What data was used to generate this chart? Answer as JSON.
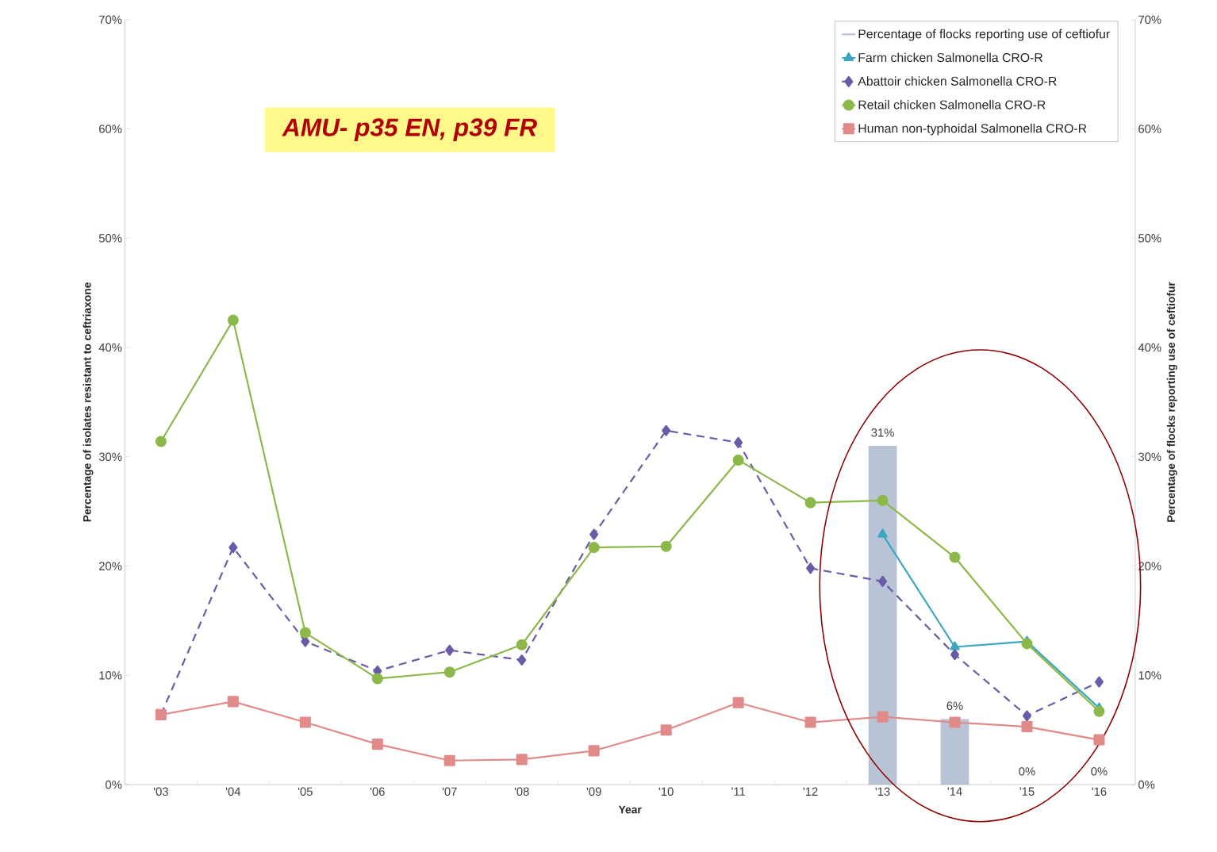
{
  "chart_data": {
    "type": "line",
    "xlabel": "Year",
    "ylabel": "Percentage of isolates resistant to ceftriaxone",
    "y2label": "Percentage of flocks reporting use of ceftiofur",
    "annotations": [
      "AMU- p35 EN, p39 FR"
    ],
    "categories": [
      "'03",
      "'04",
      "'05",
      "'06",
      "'07",
      "'08",
      "'09",
      "'10",
      "'11",
      "'12",
      "'13",
      "'14",
      "'15",
      "'16"
    ],
    "ylim": [
      0,
      70
    ],
    "yticks": [
      {
        "value": 0,
        "label": "0%"
      },
      {
        "value": 10,
        "label": "10%"
      },
      {
        "value": 20,
        "label": "20%"
      },
      {
        "value": 30,
        "label": "30%"
      },
      {
        "value": 40,
        "label": "40%"
      },
      {
        "value": 50,
        "label": "50%"
      },
      {
        "value": 60,
        "label": "60%"
      },
      {
        "value": 70,
        "label": "70%"
      }
    ],
    "y2lim": [
      0,
      70
    ],
    "y2ticks": [
      {
        "value": 0,
        "label": "0%"
      },
      {
        "value": 10,
        "label": "10%"
      },
      {
        "value": 20,
        "label": "20%"
      },
      {
        "value": 30,
        "label": "30%"
      },
      {
        "value": 40,
        "label": "40%"
      },
      {
        "value": 50,
        "label": "50%"
      },
      {
        "value": 60,
        "label": "60%"
      },
      {
        "value": 70,
        "label": "70%"
      }
    ],
    "legend": "top right",
    "grid": false,
    "series": [
      {
        "name": "Percentage of flocks reporting use of ceftiofur",
        "type": "bar",
        "axis": "y2",
        "color": "#b8c4d6",
        "values": [
          null,
          null,
          null,
          null,
          null,
          null,
          null,
          null,
          null,
          null,
          31,
          6,
          0,
          0
        ],
        "value_labels": [
          null,
          null,
          null,
          null,
          null,
          null,
          null,
          null,
          null,
          null,
          "31%",
          "6%",
          "0%",
          "0%"
        ]
      },
      {
        "name": "Farm chicken Salmonella CRO-R",
        "color": "#3aa6c0",
        "marker": "triangle",
        "line_style": "solid",
        "values": [
          null,
          null,
          null,
          null,
          null,
          null,
          null,
          null,
          null,
          null,
          22.9,
          12.6,
          13.1,
          7.0
        ]
      },
      {
        "name": "Abattoir chicken Salmonella CRO-R",
        "color": "#6a5aa8",
        "marker": "diamond",
        "line_style": "dashed",
        "values": [
          6.4,
          21.7,
          13.1,
          10.4,
          12.3,
          11.4,
          22.9,
          32.4,
          31.3,
          19.8,
          18.6,
          11.9,
          6.3,
          9.4
        ]
      },
      {
        "name": "Retail chicken Salmonella CRO-R",
        "color": "#8cb84a",
        "marker": "circle",
        "line_style": "solid",
        "values": [
          31.4,
          42.5,
          13.9,
          9.7,
          10.3,
          12.8,
          21.7,
          21.8,
          29.7,
          25.8,
          26.0,
          20.8,
          12.9,
          6.7
        ]
      },
      {
        "name": "Human non-typhoidal Salmonella CRO-R",
        "color": "#e08a8a",
        "marker": "square",
        "line_style": "solid",
        "values": [
          6.4,
          7.6,
          5.7,
          3.7,
          2.2,
          2.3,
          3.1,
          5.0,
          7.5,
          5.7,
          6.2,
          5.7,
          5.3,
          4.1
        ]
      }
    ]
  }
}
